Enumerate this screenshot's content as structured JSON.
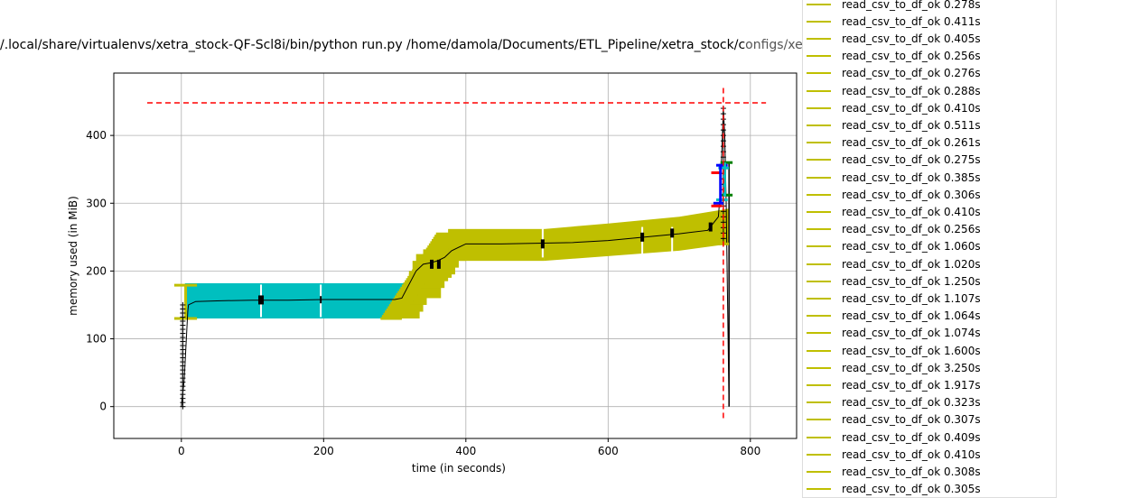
{
  "window": {
    "title_left": "/.local/share/virtualenvs/xetra_stock-QF-Scl8i/bin/python run.py /home/damola/Documents/ETL_Pipeline/xetra_stock/c",
    "title_right": "onfigs/xetra_report_config.yml"
  },
  "chart_data": {
    "type": "line",
    "title": "/.local/share/virtualenvs/xetra_stock-QF-Scl8i/bin/python run.py /home/damola/Documents/ETL_Pipeline/xetra_stock/configs/xetra_report_config.yml",
    "xlabel": "time (in seconds)",
    "ylabel": "memory used (in MiB)",
    "xlim": [
      -95,
      865
    ],
    "ylim": [
      -47,
      492
    ],
    "xticks": [
      0,
      200,
      400,
      600,
      800
    ],
    "yticks": [
      0,
      100,
      200,
      300,
      400
    ],
    "xtick_labels": [
      "0",
      "200",
      "400",
      "600",
      "800"
    ],
    "ytick_labels": [
      "0",
      "100",
      "200",
      "300",
      "400"
    ],
    "grid": true,
    "legend_position": "right-outside",
    "colors": {
      "main_band": "#00bfbf",
      "read_csv": "#bfbf00",
      "trace": "#000000",
      "peak_line": "#ff0000",
      "blue": "#0000ff",
      "green": "#008000"
    },
    "peak_memory": 448,
    "peak_time": 762,
    "memory_trace": {
      "x": [
        0,
        1,
        2,
        3,
        4,
        5,
        6,
        7,
        8,
        9,
        10,
        20,
        50,
        100,
        150,
        200,
        250,
        300,
        310,
        320,
        330,
        340,
        350,
        360,
        370,
        380,
        400,
        450,
        500,
        550,
        600,
        650,
        700,
        740,
        755,
        758,
        760,
        762,
        764,
        766,
        770
      ],
      "y": [
        0,
        10,
        20,
        30,
        40,
        60,
        80,
        100,
        120,
        140,
        150,
        155,
        156,
        157,
        157,
        158,
        158,
        158,
        160,
        180,
        200,
        210,
        212,
        215,
        220,
        230,
        240,
        240,
        241,
        242,
        245,
        250,
        255,
        260,
        280,
        320,
        380,
        440,
        400,
        300,
        0
      ]
    },
    "bands": [
      {
        "name": "cyan",
        "x_start": 5,
        "x_end": 315,
        "y_low": 130,
        "y_high": 182,
        "color": "#00bfbf"
      }
    ],
    "legend_entries": [
      "read_csv_to_df_ok 0.278s",
      "read_csv_to_df_ok 0.411s",
      "read_csv_to_df_ok 0.405s",
      "read_csv_to_df_ok 0.256s",
      "read_csv_to_df_ok 0.276s",
      "read_csv_to_df_ok 0.288s",
      "read_csv_to_df_ok 0.410s",
      "read_csv_to_df_ok 0.511s",
      "read_csv_to_df_ok 0.261s",
      "read_csv_to_df_ok 0.275s",
      "read_csv_to_df_ok 0.385s",
      "read_csv_to_df_ok 0.306s",
      "read_csv_to_df_ok 0.410s",
      "read_csv_to_df_ok 0.256s",
      "read_csv_to_df_ok 1.060s",
      "read_csv_to_df_ok 1.020s",
      "read_csv_to_df_ok 1.250s",
      "read_csv_to_df_ok 1.107s",
      "read_csv_to_df_ok 1.064s",
      "read_csv_to_df_ok 1.074s",
      "read_csv_to_df_ok 1.600s",
      "read_csv_to_df_ok 3.250s",
      "read_csv_to_df_ok 1.917s",
      "read_csv_to_df_ok 0.323s",
      "read_csv_to_df_ok 0.307s",
      "read_csv_to_df_ok 0.409s",
      "read_csv_to_df_ok 0.410s",
      "read_csv_to_df_ok 0.308s",
      "read_csv_to_df_ok 0.305s"
    ]
  }
}
